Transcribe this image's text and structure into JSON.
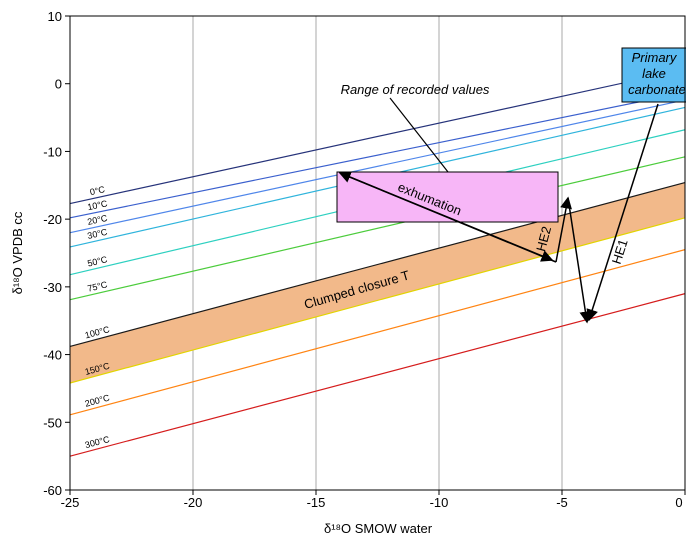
{
  "chart_data": {
    "type": "line",
    "x_label": "δ¹⁸O SMOW water",
    "y_label": "δ¹⁸O VPDB cc",
    "x": [
      -25,
      0
    ],
    "series": [
      {
        "name": "0°C",
        "color": "#26337a",
        "values": [
          -17.7,
          2.1
        ]
      },
      {
        "name": "10°C",
        "color": "#3a5fcd",
        "values": [
          -19.8,
          -1.3
        ]
      },
      {
        "name": "20°C",
        "color": "#4f86ea",
        "values": [
          -22.0,
          -2.4
        ]
      },
      {
        "name": "30°C",
        "color": "#2fb4dc",
        "values": [
          -24.1,
          -3.5
        ]
      },
      {
        "name": "50°C",
        "color": "#2dd0c0",
        "values": [
          -28.2,
          -6.8
        ]
      },
      {
        "name": "75°C",
        "color": "#4ccc3c",
        "values": [
          -31.9,
          -10.8
        ]
      },
      {
        "name": "100°C",
        "color": "#1a1a1a",
        "values": [
          -38.8,
          -14.6
        ]
      },
      {
        "name": "150°C",
        "color": "#e2d400",
        "values": [
          -44.2,
          -19.8
        ]
      },
      {
        "name": "200°C",
        "color": "#ff8412",
        "values": [
          -48.9,
          -24.5
        ]
      },
      {
        "name": "300°C",
        "color": "#d51c1c",
        "values": [
          -55.0,
          -31.0
        ]
      }
    ],
    "xlim": [
      -25,
      0
    ],
    "ylim": [
      -60,
      10
    ],
    "xticks": [
      -25,
      -20,
      -15,
      -10,
      -5,
      0
    ],
    "yticks": [
      -60,
      -50,
      -40,
      -30,
      -20,
      -10,
      0,
      10
    ],
    "grid": true,
    "annotations": {
      "range": "Range of recorded values",
      "exhumation": "exhumation",
      "closure": "Clumped closure T",
      "he2": "HE2",
      "he1": "HE1",
      "lake": [
        "Primary",
        "lake",
        "carbonate"
      ]
    }
  }
}
